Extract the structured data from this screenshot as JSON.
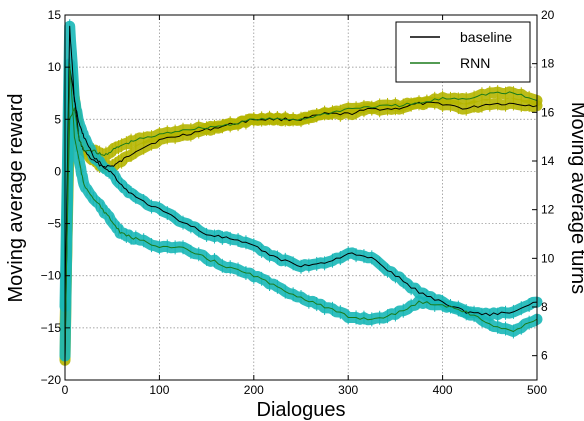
{
  "colors": {
    "baseline_line": "#000000",
    "rnn_line": "#1a7a1a",
    "rnn_band": "#b5b500",
    "baseline_band": "#18b7b7"
  },
  "chart_data": {
    "type": "line",
    "xlabel": "Dialogues",
    "ylabel_left": "Moving average reward",
    "ylabel_right": "Moving average turns",
    "xlim": [
      0,
      500
    ],
    "ylim_left": [
      -20,
      15
    ],
    "ylim_right": [
      5,
      20
    ],
    "x_ticks": [
      "0",
      "100",
      "200",
      "300",
      "400",
      "500"
    ],
    "y_left_ticks": [
      "15",
      "10",
      "5",
      "0",
      "−5",
      "−10",
      "−15",
      "−20"
    ],
    "y_right_ticks": [
      "20",
      "18",
      "16",
      "14",
      "12",
      "10",
      "8",
      "6"
    ],
    "grid": true,
    "legend_position": "top-right",
    "x": [
      0,
      5,
      10,
      15,
      20,
      30,
      40,
      50,
      60,
      75,
      100,
      125,
      150,
      175,
      200,
      225,
      250,
      275,
      300,
      325,
      350,
      375,
      400,
      425,
      450,
      475,
      500
    ],
    "series": [
      {
        "name": "baseline",
        "axis": "left",
        "group": "reward",
        "values": [
          -18,
          10,
          7,
          3,
          2,
          1,
          0.5,
          0.5,
          1,
          2,
          3,
          3.5,
          4,
          4.5,
          5,
          5,
          5,
          5.5,
          5.5,
          6,
          6,
          6.5,
          6.5,
          6,
          6.5,
          6.5,
          6.3
        ]
      },
      {
        "name": "RNN",
        "axis": "left",
        "group": "reward",
        "values": [
          -15,
          5,
          6,
          3,
          2,
          2,
          1.5,
          2,
          2.5,
          3,
          3.5,
          4,
          4.2,
          4.5,
          5,
          5,
          5,
          5.5,
          6,
          6.2,
          6.3,
          6.5,
          7,
          7,
          7.5,
          7.5,
          6.8
        ]
      },
      {
        "axis": "right",
        "group": "turns",
        "values": [
          8,
          19.5,
          16.5,
          15.5,
          15,
          14.2,
          13.8,
          13.5,
          13,
          12.5,
          12,
          11.5,
          11,
          10.8,
          10.5,
          10,
          9.7,
          9.8,
          10.2,
          10,
          9.3,
          8.6,
          8.2,
          7.8,
          7.7,
          7.8,
          8.2
        ]
      },
      {
        "axis": "right",
        "group": "turns",
        "values": [
          6,
          18,
          15,
          14,
          13,
          12.5,
          12,
          11.5,
          11,
          10.8,
          10.5,
          10.4,
          10,
          9.6,
          9.3,
          8.8,
          8.4,
          8.0,
          7.6,
          7.5,
          7.7,
          8.2,
          8.1,
          7.8,
          7.3,
          7.0,
          7.5
        ]
      }
    ],
    "legend": [
      {
        "name": "baseline",
        "color": "#000000"
      },
      {
        "name": "RNN",
        "color": "#1a7a1a"
      }
    ]
  }
}
